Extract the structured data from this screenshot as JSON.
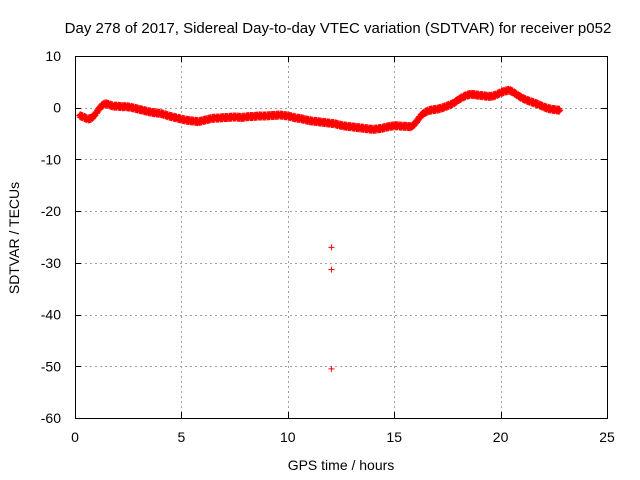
{
  "chart_data": {
    "type": "scatter",
    "title": "Day 278 of 2017, Sidereal Day-to-day VTEC variation (SDTVAR) for receiver p052",
    "xlabel": "GPS time / hours",
    "ylabel": "SDTVAR / TECUs",
    "xlim": [
      0,
      25
    ],
    "ylim": [
      -60,
      10
    ],
    "xticks": [
      0,
      5,
      10,
      15,
      20,
      25
    ],
    "yticks": [
      10,
      0,
      -10,
      -20,
      -30,
      -40,
      -50,
      -60
    ],
    "grid": true,
    "marker": "+",
    "color": "#ff0000",
    "series": [
      {
        "name": "SDTVAR",
        "x": [
          0.2,
          0.4,
          0.6,
          0.8,
          1.0,
          1.2,
          1.4,
          1.6,
          1.8,
          2.0,
          2.2,
          2.4,
          2.6,
          2.8,
          3.0,
          3.2,
          3.4,
          3.6,
          3.8,
          4.0,
          4.2,
          4.4,
          4.6,
          4.8,
          5.0,
          5.2,
          5.4,
          5.6,
          5.8,
          6.0,
          6.2,
          6.4,
          6.6,
          6.8,
          7.0,
          7.2,
          7.4,
          7.6,
          7.8,
          8.0,
          8.2,
          8.4,
          8.6,
          8.8,
          9.0,
          9.2,
          9.4,
          9.6,
          9.8,
          10.0,
          10.2,
          10.4,
          10.6,
          10.8,
          11.0,
          11.2,
          11.4,
          11.6,
          11.8,
          12.0,
          12.2,
          12.4,
          12.6,
          12.8,
          13.0,
          13.2,
          13.4,
          13.6,
          13.8,
          14.0,
          14.2,
          14.4,
          14.6,
          14.8,
          15.0,
          15.2,
          15.4,
          15.6,
          15.8,
          16.0,
          16.2,
          16.4,
          16.6,
          16.8,
          17.0,
          17.2,
          17.4,
          17.6,
          17.8,
          18.0,
          18.2,
          18.4,
          18.6,
          18.8,
          19.0,
          19.2,
          19.4,
          19.6,
          19.8,
          20.0,
          20.2,
          20.4,
          20.6,
          20.8,
          21.0,
          21.2,
          21.4,
          21.6,
          21.8,
          22.0,
          22.2,
          22.4,
          22.6,
          22.8,
          12.05,
          12.05,
          12.05
        ],
        "y": [
          -1.5,
          -1.8,
          -2.2,
          -2.0,
          -1.0,
          0.2,
          0.8,
          0.6,
          0.3,
          0.3,
          0.2,
          0.2,
          0.1,
          -0.1,
          -0.3,
          -0.5,
          -0.7,
          -0.9,
          -1.0,
          -1.1,
          -1.3,
          -1.6,
          -1.8,
          -2.0,
          -2.2,
          -2.4,
          -2.5,
          -2.6,
          -2.7,
          -2.5,
          -2.3,
          -2.1,
          -2.0,
          -2.0,
          -1.9,
          -1.9,
          -1.8,
          -1.8,
          -1.9,
          -1.8,
          -1.7,
          -1.7,
          -1.6,
          -1.6,
          -1.6,
          -1.5,
          -1.5,
          -1.4,
          -1.5,
          -1.6,
          -1.8,
          -2.0,
          -2.1,
          -2.3,
          -2.5,
          -2.6,
          -2.7,
          -2.8,
          -2.9,
          -3.0,
          -3.1,
          -3.3,
          -3.5,
          -3.6,
          -3.7,
          -3.8,
          -3.9,
          -4.0,
          -4.1,
          -4.2,
          -4.1,
          -4.0,
          -3.8,
          -3.6,
          -3.5,
          -3.5,
          -3.6,
          -3.6,
          -3.7,
          -3.0,
          -1.8,
          -1.0,
          -0.6,
          -0.4,
          -0.3,
          -0.1,
          0.2,
          0.5,
          0.9,
          1.5,
          2.0,
          2.4,
          2.6,
          2.5,
          2.4,
          2.3,
          2.2,
          2.2,
          2.5,
          2.9,
          3.2,
          3.4,
          3.0,
          2.4,
          1.9,
          1.5,
          1.2,
          0.9,
          0.6,
          0.2,
          -0.1,
          -0.3,
          -0.4,
          -0.5,
          -27.0,
          -31.3,
          -50.5
        ]
      }
    ]
  }
}
